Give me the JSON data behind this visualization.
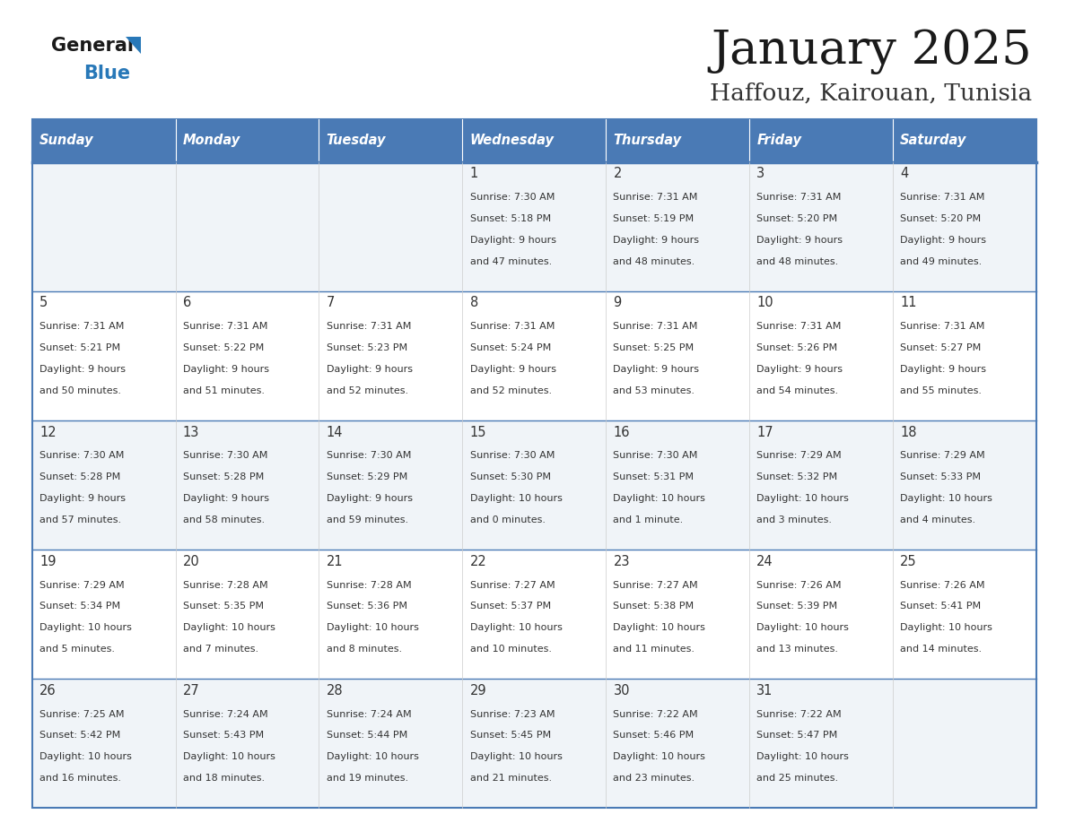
{
  "title": "January 2025",
  "subtitle": "Haffouz, Kairouan, Tunisia",
  "days_of_week": [
    "Sunday",
    "Monday",
    "Tuesday",
    "Wednesday",
    "Thursday",
    "Friday",
    "Saturday"
  ],
  "header_bg": "#4a7ab5",
  "header_text": "#ffffff",
  "cell_bg_odd": "#f0f4f8",
  "cell_bg_even": "#ffffff",
  "border_color": "#4a7ab5",
  "text_color": "#333333",
  "title_color": "#1a1a1a",
  "subtitle_color": "#333333",
  "logo_general_color": "#1a1a1a",
  "logo_blue_color": "#2878b8",
  "logo_triangle_color": "#2878b8",
  "calendar_data": [
    [
      {
        "day": "",
        "sunrise": "",
        "sunset": "",
        "daylight": ""
      },
      {
        "day": "",
        "sunrise": "",
        "sunset": "",
        "daylight": ""
      },
      {
        "day": "",
        "sunrise": "",
        "sunset": "",
        "daylight": ""
      },
      {
        "day": "1",
        "sunrise": "7:30 AM",
        "sunset": "5:18 PM",
        "daylight": "9 hours\nand 47 minutes."
      },
      {
        "day": "2",
        "sunrise": "7:31 AM",
        "sunset": "5:19 PM",
        "daylight": "9 hours\nand 48 minutes."
      },
      {
        "day": "3",
        "sunrise": "7:31 AM",
        "sunset": "5:20 PM",
        "daylight": "9 hours\nand 48 minutes."
      },
      {
        "day": "4",
        "sunrise": "7:31 AM",
        "sunset": "5:20 PM",
        "daylight": "9 hours\nand 49 minutes."
      }
    ],
    [
      {
        "day": "5",
        "sunrise": "7:31 AM",
        "sunset": "5:21 PM",
        "daylight": "9 hours\nand 50 minutes."
      },
      {
        "day": "6",
        "sunrise": "7:31 AM",
        "sunset": "5:22 PM",
        "daylight": "9 hours\nand 51 minutes."
      },
      {
        "day": "7",
        "sunrise": "7:31 AM",
        "sunset": "5:23 PM",
        "daylight": "9 hours\nand 52 minutes."
      },
      {
        "day": "8",
        "sunrise": "7:31 AM",
        "sunset": "5:24 PM",
        "daylight": "9 hours\nand 52 minutes."
      },
      {
        "day": "9",
        "sunrise": "7:31 AM",
        "sunset": "5:25 PM",
        "daylight": "9 hours\nand 53 minutes."
      },
      {
        "day": "10",
        "sunrise": "7:31 AM",
        "sunset": "5:26 PM",
        "daylight": "9 hours\nand 54 minutes."
      },
      {
        "day": "11",
        "sunrise": "7:31 AM",
        "sunset": "5:27 PM",
        "daylight": "9 hours\nand 55 minutes."
      }
    ],
    [
      {
        "day": "12",
        "sunrise": "7:30 AM",
        "sunset": "5:28 PM",
        "daylight": "9 hours\nand 57 minutes."
      },
      {
        "day": "13",
        "sunrise": "7:30 AM",
        "sunset": "5:28 PM",
        "daylight": "9 hours\nand 58 minutes."
      },
      {
        "day": "14",
        "sunrise": "7:30 AM",
        "sunset": "5:29 PM",
        "daylight": "9 hours\nand 59 minutes."
      },
      {
        "day": "15",
        "sunrise": "7:30 AM",
        "sunset": "5:30 PM",
        "daylight": "10 hours\nand 0 minutes."
      },
      {
        "day": "16",
        "sunrise": "7:30 AM",
        "sunset": "5:31 PM",
        "daylight": "10 hours\nand 1 minute."
      },
      {
        "day": "17",
        "sunrise": "7:29 AM",
        "sunset": "5:32 PM",
        "daylight": "10 hours\nand 3 minutes."
      },
      {
        "day": "18",
        "sunrise": "7:29 AM",
        "sunset": "5:33 PM",
        "daylight": "10 hours\nand 4 minutes."
      }
    ],
    [
      {
        "day": "19",
        "sunrise": "7:29 AM",
        "sunset": "5:34 PM",
        "daylight": "10 hours\nand 5 minutes."
      },
      {
        "day": "20",
        "sunrise": "7:28 AM",
        "sunset": "5:35 PM",
        "daylight": "10 hours\nand 7 minutes."
      },
      {
        "day": "21",
        "sunrise": "7:28 AM",
        "sunset": "5:36 PM",
        "daylight": "10 hours\nand 8 minutes."
      },
      {
        "day": "22",
        "sunrise": "7:27 AM",
        "sunset": "5:37 PM",
        "daylight": "10 hours\nand 10 minutes."
      },
      {
        "day": "23",
        "sunrise": "7:27 AM",
        "sunset": "5:38 PM",
        "daylight": "10 hours\nand 11 minutes."
      },
      {
        "day": "24",
        "sunrise": "7:26 AM",
        "sunset": "5:39 PM",
        "daylight": "10 hours\nand 13 minutes."
      },
      {
        "day": "25",
        "sunrise": "7:26 AM",
        "sunset": "5:41 PM",
        "daylight": "10 hours\nand 14 minutes."
      }
    ],
    [
      {
        "day": "26",
        "sunrise": "7:25 AM",
        "sunset": "5:42 PM",
        "daylight": "10 hours\nand 16 minutes."
      },
      {
        "day": "27",
        "sunrise": "7:24 AM",
        "sunset": "5:43 PM",
        "daylight": "10 hours\nand 18 minutes."
      },
      {
        "day": "28",
        "sunrise": "7:24 AM",
        "sunset": "5:44 PM",
        "daylight": "10 hours\nand 19 minutes."
      },
      {
        "day": "29",
        "sunrise": "7:23 AM",
        "sunset": "5:45 PM",
        "daylight": "10 hours\nand 21 minutes."
      },
      {
        "day": "30",
        "sunrise": "7:22 AM",
        "sunset": "5:46 PM",
        "daylight": "10 hours\nand 23 minutes."
      },
      {
        "day": "31",
        "sunrise": "7:22 AM",
        "sunset": "5:47 PM",
        "daylight": "10 hours\nand 25 minutes."
      },
      {
        "day": "",
        "sunrise": "",
        "sunset": "",
        "daylight": ""
      }
    ]
  ]
}
